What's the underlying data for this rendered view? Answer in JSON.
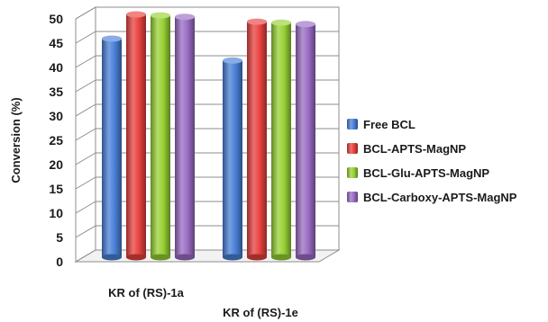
{
  "chart_data": {
    "type": "bar",
    "style": "3d-cylinder",
    "categories": [
      "KR of (RS)-1a",
      "KR of (RS)-1e"
    ],
    "series": [
      {
        "name": "Free BCL",
        "color": "#4a80d8",
        "values": [
          45,
          40.5
        ]
      },
      {
        "name": "BCL-APTS-MagNP",
        "color": "#e8423f",
        "values": [
          50,
          48.5
        ]
      },
      {
        "name": "BCL-Glu-APTS-MagNP",
        "color": "#98d134",
        "values": [
          49.8,
          48.3
        ]
      },
      {
        "name": "BCL-Carboxy-APTS-MagNP",
        "color": "#9a6cc4",
        "values": [
          49.5,
          48
        ]
      }
    ],
    "ylabel": "Conversion (%)",
    "xlabel": "",
    "ylim": [
      0,
      50
    ],
    "yticks": [
      "0",
      "5",
      "10",
      "15",
      "20",
      "25",
      "30",
      "35",
      "40",
      "45",
      "50"
    ],
    "grid": true,
    "legend_position": "right"
  }
}
